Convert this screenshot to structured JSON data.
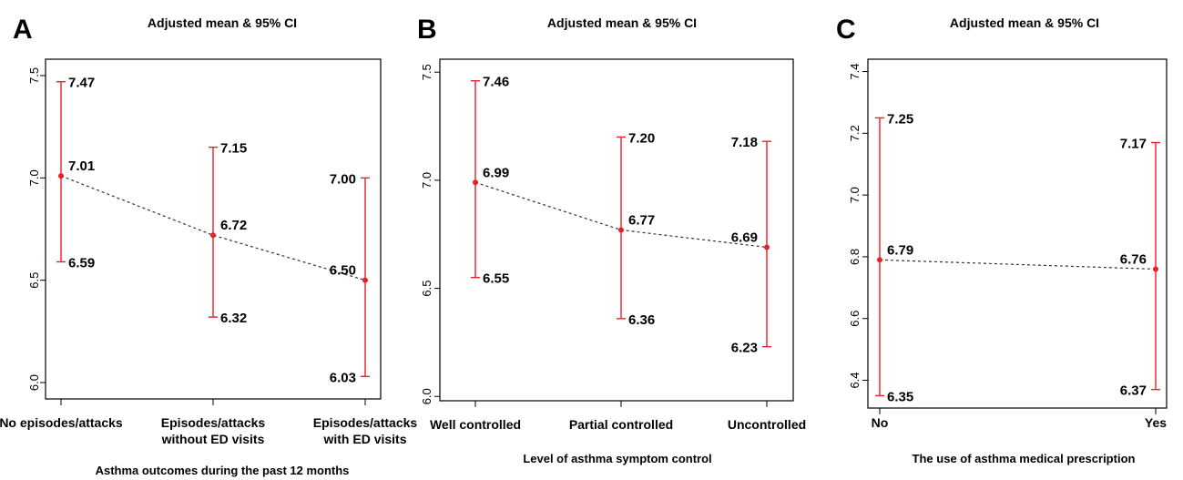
{
  "colors": {
    "ci": "#e8202a",
    "point": "#e8202a",
    "trend": "#333333",
    "axis": "#000000"
  },
  "chart_data": [
    {
      "panel_label": "A",
      "title": "Adjusted mean & 95% CI",
      "type": "errorbar",
      "categories": [
        "No episodes/attacks",
        "Episodes/attacks\nwithout ED visits",
        "Episodes/attacks\nwith ED visits"
      ],
      "xlabel": "Asthma outcomes during the past 12 months",
      "ylabel": "",
      "ylim": [
        5.92,
        7.58
      ],
      "yticks": [
        6.0,
        6.5,
        7.0,
        7.5
      ],
      "ytick_labels": [
        "6.0",
        "6.5",
        "7.0",
        "7.5"
      ],
      "grid": false,
      "points": [
        {
          "mean": 7.01,
          "lower": 6.59,
          "upper": 7.47,
          "mean_label": "7.01",
          "lower_label": "6.59",
          "upper_label": "7.47"
        },
        {
          "mean": 6.72,
          "lower": 6.32,
          "upper": 7.15,
          "mean_label": "6.72",
          "lower_label": "6.32",
          "upper_label": "7.15"
        },
        {
          "mean": 6.5,
          "lower": 6.03,
          "upper": 7.0,
          "mean_label": "6.50",
          "lower_label": "6.03",
          "upper_label": "7.00"
        }
      ]
    },
    {
      "panel_label": "B",
      "title": "Adjusted mean & 95% CI",
      "type": "errorbar",
      "categories": [
        "Well controlled",
        "Partial controlled",
        "Uncontrolled"
      ],
      "xlabel": "Level of asthma symptom control",
      "ylabel": "",
      "ylim": [
        5.98,
        7.56
      ],
      "yticks": [
        6.0,
        6.5,
        7.0,
        7.5
      ],
      "ytick_labels": [
        "6.0",
        "6.5",
        "7.0",
        "7.5"
      ],
      "grid": false,
      "points": [
        {
          "mean": 6.99,
          "lower": 6.55,
          "upper": 7.46,
          "mean_label": "6.99",
          "lower_label": "6.55",
          "upper_label": "7.46"
        },
        {
          "mean": 6.77,
          "lower": 6.36,
          "upper": 7.2,
          "mean_label": "6.77",
          "lower_label": "6.36",
          "upper_label": "7.20"
        },
        {
          "mean": 6.69,
          "lower": 6.23,
          "upper": 7.18,
          "mean_label": "6.69",
          "lower_label": "6.23",
          "upper_label": "7.18"
        }
      ]
    },
    {
      "panel_label": "C",
      "title": "Adjusted mean & 95% CI",
      "type": "errorbar",
      "categories": [
        "No",
        "Yes"
      ],
      "xlabel": "The use of asthma medical prescription",
      "ylabel": "",
      "ylim": [
        6.31,
        7.44
      ],
      "yticks": [
        6.4,
        6.6,
        6.8,
        7.0,
        7.2,
        7.4
      ],
      "ytick_labels": [
        "6.4",
        "6.6",
        "6.8",
        "7.0",
        "7.2",
        "7.4"
      ],
      "grid": false,
      "points": [
        {
          "mean": 6.79,
          "lower": 6.35,
          "upper": 7.25,
          "mean_label": "6.79",
          "lower_label": "6.35",
          "upper_label": "7.25"
        },
        {
          "mean": 6.76,
          "lower": 6.37,
          "upper": 7.17,
          "mean_label": "6.76",
          "lower_label": "6.37",
          "upper_label": "7.17"
        }
      ]
    }
  ]
}
